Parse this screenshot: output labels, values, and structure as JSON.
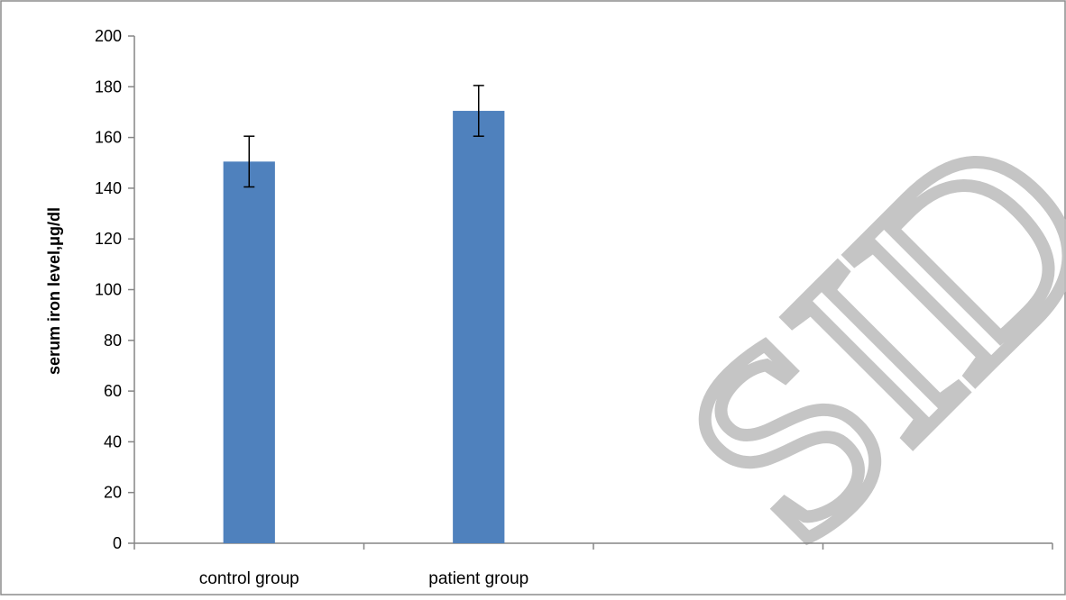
{
  "chart_data": {
    "type": "bar",
    "categories": [
      "control group",
      "patient group",
      "",
      ""
    ],
    "series": [
      {
        "values": [
          150.5,
          170.5,
          null,
          null
        ],
        "error": [
          10,
          10,
          null,
          null
        ]
      }
    ],
    "ylabel": "serum iron level,μg/dl",
    "xlabel": "",
    "ylim": [
      0,
      200
    ],
    "yticks": [
      0,
      20,
      40,
      60,
      80,
      100,
      120,
      140,
      160,
      180,
      200
    ],
    "grid": false,
    "legend": "none",
    "colors": {
      "bar": "#4F81BD",
      "axis": "#868686",
      "frame": "#8C8C8C",
      "watermark": "#BFBFBF"
    }
  },
  "watermark": "SID"
}
